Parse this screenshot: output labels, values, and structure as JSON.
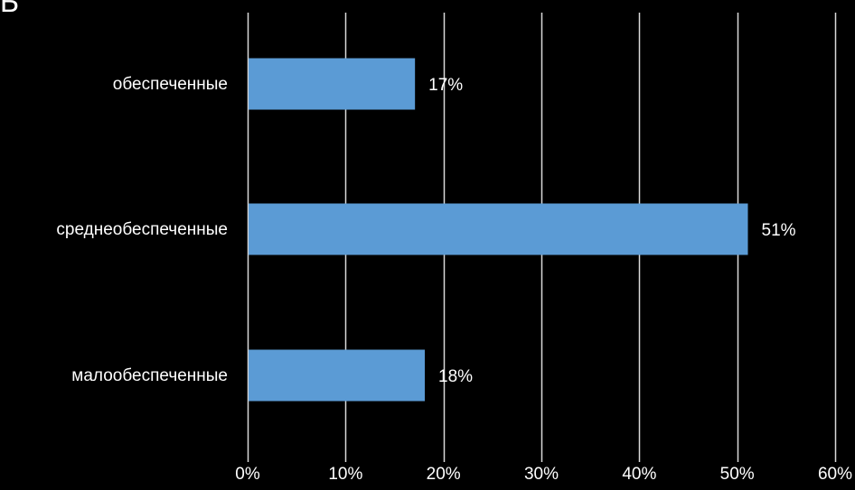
{
  "corner_text": "Б",
  "colors": {
    "background": "#000000",
    "bar": "#5b9bd5",
    "grid": "#d9d9d9",
    "text": "#ffffff"
  },
  "chart_data": {
    "type": "bar",
    "orientation": "horizontal",
    "categories": [
      "обеспеченные",
      "среднеобеспеченные",
      "малообеспеченные"
    ],
    "values": [
      17,
      51,
      18
    ],
    "value_labels": [
      "17%",
      "51%",
      "18%"
    ],
    "xlim": [
      0,
      60
    ],
    "x_ticks": [
      0,
      10,
      20,
      30,
      40,
      50,
      60
    ],
    "x_tick_labels": [
      "0%",
      "10%",
      "20%",
      "30%",
      "40%",
      "50%",
      "60%"
    ],
    "grid": "vertical",
    "legend": "none"
  }
}
